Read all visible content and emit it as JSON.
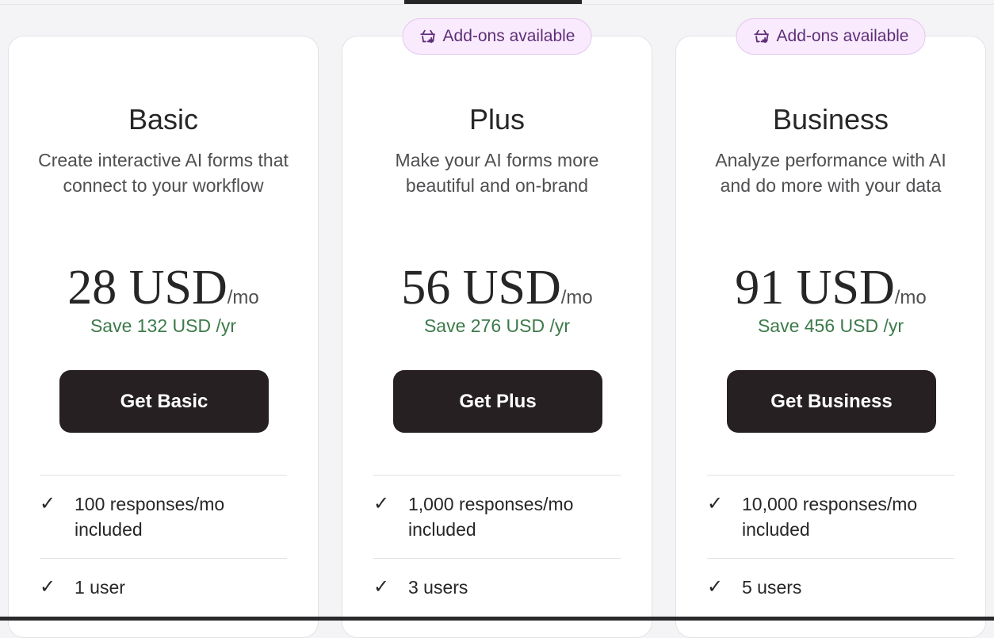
{
  "addon_badge": {
    "label": "Add-ons available",
    "icon": "basket-plus-icon"
  },
  "colors": {
    "save_text": "#3d7a4a",
    "badge_text": "#5e2f78",
    "badge_bg": "#f9ebfd",
    "button_bg": "#262023"
  },
  "plans": [
    {
      "name": "Basic",
      "description": "Create interactive AI forms that connect to your workflow",
      "price": "28 USD",
      "per": "/mo",
      "save": "Save 132 USD /yr",
      "cta": "Get Basic",
      "badge": false,
      "features": [
        "100 responses/mo included",
        "1 user"
      ]
    },
    {
      "name": "Plus",
      "description": "Make your AI forms more beautiful and on-brand",
      "price": "56 USD",
      "per": "/mo",
      "save": "Save 276 USD /yr",
      "cta": "Get Plus",
      "badge": true,
      "features": [
        "1,000 responses/mo included",
        "3 users"
      ]
    },
    {
      "name": "Business",
      "description": "Analyze performance with AI and do more with your data",
      "price": "91 USD",
      "per": "/mo",
      "save": "Save 456 USD /yr",
      "cta": "Get Business",
      "badge": true,
      "features": [
        "10,000 responses/mo included",
        "5 users"
      ]
    }
  ]
}
